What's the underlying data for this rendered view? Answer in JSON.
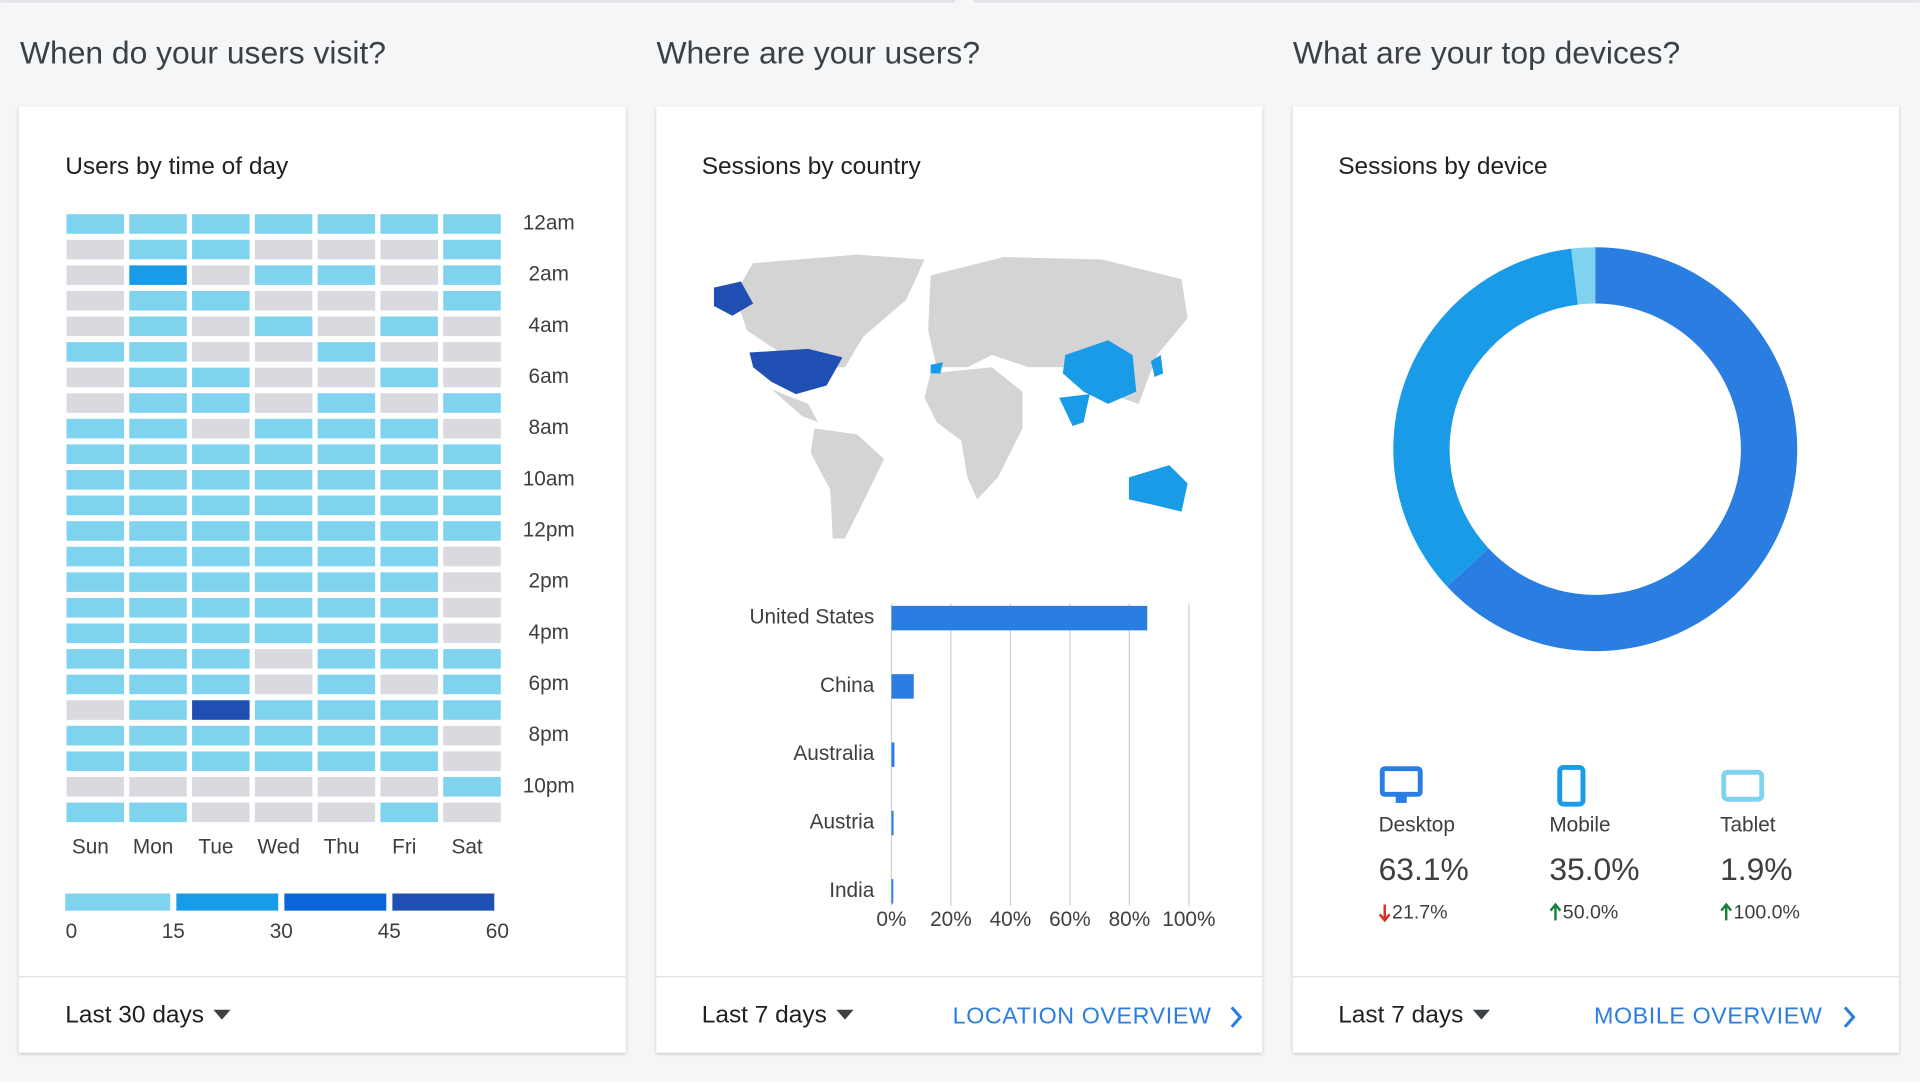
{
  "sections": [
    {
      "heading": "When do your users visit?",
      "card_title": "Users by time of day",
      "range": "Last 30 days"
    },
    {
      "heading": "Where are your users?",
      "card_title": "Sessions by country",
      "range": "Last 7 days",
      "link": "LOCATION OVERVIEW"
    },
    {
      "heading": "What are your top devices?",
      "card_title": "Sessions by device",
      "range": "Last 7 days",
      "link": "MOBILE OVERVIEW"
    }
  ],
  "chart_data": [
    {
      "type": "heatmap",
      "x_categories": [
        "Sun",
        "Mon",
        "Tue",
        "Wed",
        "Thu",
        "Fri",
        "Sat"
      ],
      "y_categories": [
        "12am",
        null,
        "2am",
        null,
        "4am",
        null,
        "6am",
        null,
        "8am",
        null,
        "10am",
        null,
        "12pm",
        null,
        "2pm",
        null,
        "4pm",
        null,
        "6pm",
        null,
        "8pm",
        null,
        "10pm",
        null
      ],
      "values": [
        [
          8,
          8,
          8,
          8,
          8,
          8,
          8
        ],
        [
          0,
          8,
          8,
          0,
          0,
          0,
          8
        ],
        [
          0,
          20,
          0,
          8,
          8,
          0,
          8
        ],
        [
          0,
          8,
          8,
          0,
          0,
          0,
          8
        ],
        [
          0,
          8,
          0,
          8,
          0,
          8,
          0
        ],
        [
          8,
          8,
          0,
          0,
          8,
          0,
          0
        ],
        [
          0,
          8,
          8,
          0,
          0,
          8,
          0
        ],
        [
          0,
          8,
          8,
          0,
          8,
          0,
          8
        ],
        [
          8,
          8,
          0,
          8,
          8,
          8,
          0
        ],
        [
          8,
          8,
          8,
          8,
          8,
          8,
          8
        ],
        [
          8,
          8,
          8,
          8,
          8,
          8,
          8
        ],
        [
          8,
          8,
          8,
          8,
          8,
          8,
          8
        ],
        [
          8,
          8,
          8,
          8,
          8,
          8,
          8
        ],
        [
          8,
          8,
          8,
          8,
          8,
          8,
          0
        ],
        [
          8,
          8,
          8,
          8,
          8,
          8,
          0
        ],
        [
          8,
          8,
          8,
          8,
          8,
          8,
          0
        ],
        [
          8,
          8,
          8,
          8,
          8,
          8,
          0
        ],
        [
          8,
          8,
          8,
          0,
          8,
          8,
          8
        ],
        [
          8,
          8,
          8,
          0,
          8,
          0,
          8
        ],
        [
          0,
          8,
          50,
          8,
          8,
          8,
          8
        ],
        [
          8,
          8,
          8,
          8,
          8,
          8,
          0
        ],
        [
          8,
          8,
          8,
          8,
          8,
          8,
          0
        ],
        [
          0,
          0,
          0,
          0,
          0,
          0,
          8
        ],
        [
          8,
          8,
          0,
          0,
          0,
          8,
          0
        ]
      ],
      "scale_ticks": [
        0,
        15,
        30,
        45,
        60
      ],
      "scale_colors": [
        "#7fd3ef",
        "#1a9be8",
        "#0a66d8",
        "#1f4fb3"
      ],
      "empty_color": "#d9dadf"
    },
    {
      "type": "bar",
      "orientation": "horizontal",
      "categories": [
        "United States",
        "China",
        "Australia",
        "Austria",
        "India"
      ],
      "values": [
        86,
        7.5,
        1,
        0.7,
        0.6
      ],
      "color": "#2a7de1",
      "xlim": [
        0,
        100
      ],
      "xticks": [
        {
          "value": 0,
          "label": "0%"
        },
        {
          "value": 20,
          "label": "20%"
        },
        {
          "value": 40,
          "label": "40%"
        },
        {
          "value": 60,
          "label": "60%"
        },
        {
          "value": 80,
          "label": "80%"
        },
        {
          "value": 100,
          "label": "100%"
        }
      ],
      "grid": true
    },
    {
      "type": "donut",
      "categories": [
        "Desktop",
        "Mobile",
        "Tablet"
      ],
      "values": [
        63.1,
        35.0,
        1.9
      ],
      "value_labels": [
        "63.1%",
        "35.0%",
        "1.9%"
      ],
      "colors": [
        "#2a7de1",
        "#1a9be8",
        "#7fd3ef"
      ],
      "change_labels": [
        "21.7%",
        "50.0%",
        "100.0%"
      ],
      "change_directions": [
        "down",
        "up",
        "up"
      ]
    }
  ]
}
